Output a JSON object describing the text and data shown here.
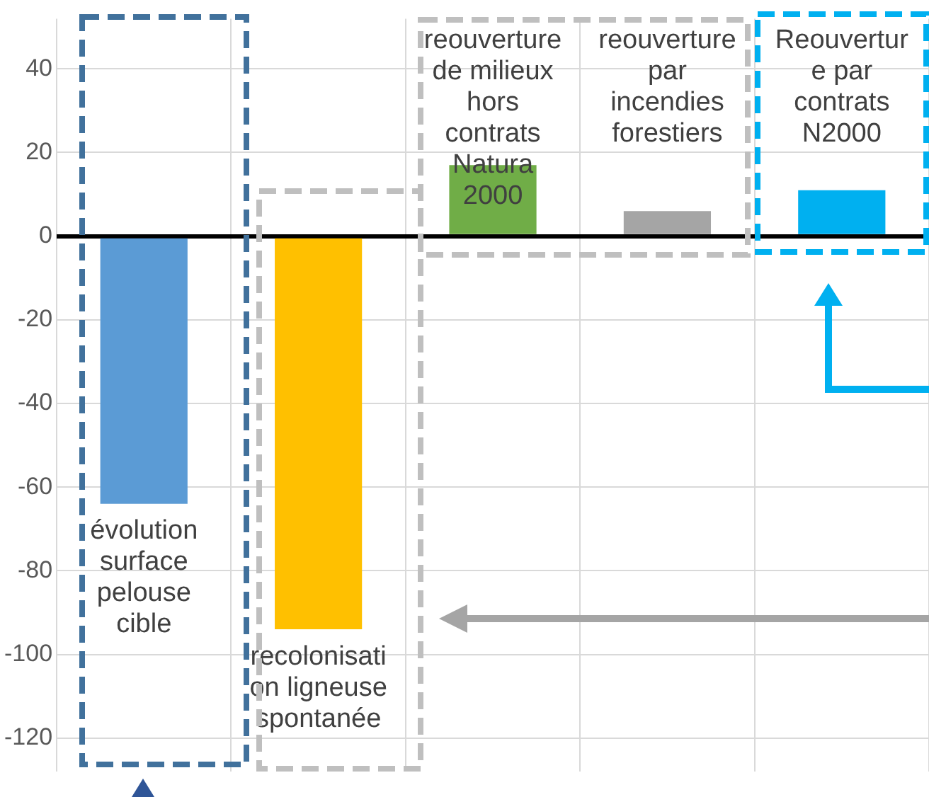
{
  "chart_data": {
    "type": "bar",
    "categories": [
      "évolution surface pelouse cible",
      "recolonisation ligneuse spontanée",
      "reouverture de milieux hors contrats Natura 2000",
      "reouverture par incendies forestiers",
      "Reouverture par contrats N2000"
    ],
    "values": [
      -64,
      -94,
      17,
      6,
      11
    ],
    "colors": [
      "#5b9bd5",
      "#ffc000",
      "#70ad47",
      "#a5a5a5",
      "#00b0f0"
    ],
    "ylim": [
      -128,
      52
    ],
    "yticks": [
      -120,
      -100,
      -80,
      -60,
      -40,
      -20,
      0,
      20,
      40
    ],
    "grid": true
  }
}
